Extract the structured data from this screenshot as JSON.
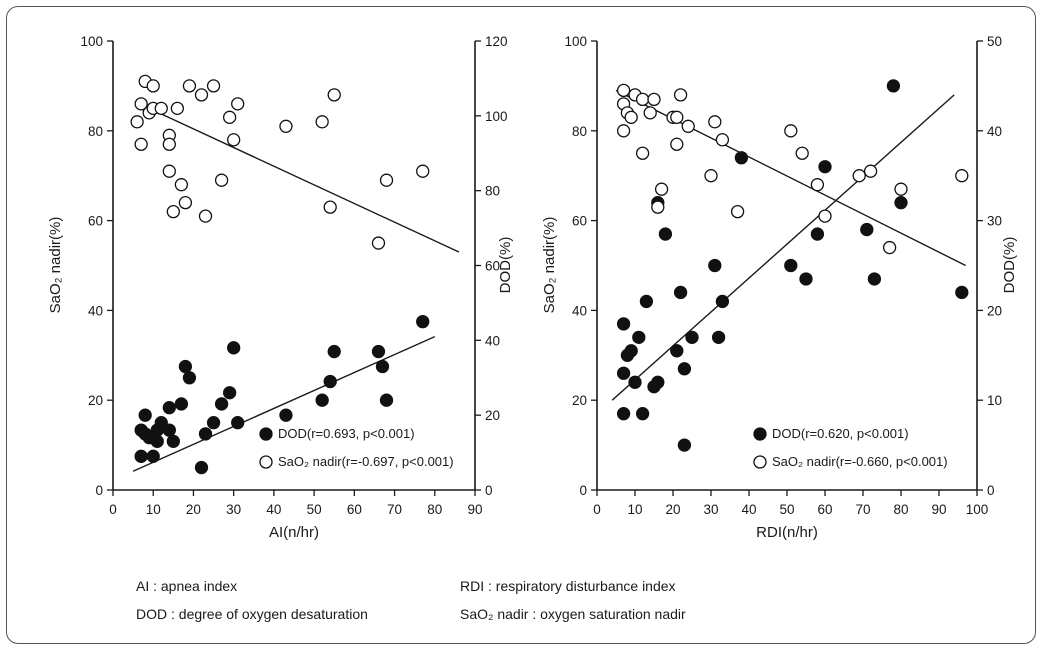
{
  "chart_data": [
    {
      "type": "scatter",
      "xlabel": "AI(n/hr)",
      "ylabel": "SaO₂ nadir(%)",
      "y2label": "DOD(%)",
      "xlim": [
        0,
        90
      ],
      "ylim": [
        0,
        100
      ],
      "y2lim": [
        0,
        120
      ],
      "xticks": [
        "0",
        "10",
        "20",
        "30",
        "40",
        "50",
        "60",
        "70",
        "80",
        "90"
      ],
      "yticks": [
        "0",
        "20",
        "40",
        "60",
        "80",
        "100"
      ],
      "y2ticks": [
        "0",
        "20",
        "40",
        "60",
        "80",
        "100",
        "120"
      ],
      "legend_position": "bottom-right",
      "series": [
        {
          "name": "DOD(r=0.693, p<0.001)",
          "marker": "filled-circle",
          "axis": "right",
          "points": [
            [
              7,
              16
            ],
            [
              7,
              9
            ],
            [
              8,
              15
            ],
            [
              8,
              20
            ],
            [
              9,
              14
            ],
            [
              10,
              9
            ],
            [
              11,
              13
            ],
            [
              11,
              16
            ],
            [
              12,
              18
            ],
            [
              14,
              16
            ],
            [
              14,
              22
            ],
            [
              15,
              13
            ],
            [
              17,
              23
            ],
            [
              18,
              33
            ],
            [
              19,
              30
            ],
            [
              22,
              6
            ],
            [
              23,
              15
            ],
            [
              25,
              18
            ],
            [
              27,
              23
            ],
            [
              29,
              26
            ],
            [
              30,
              38
            ],
            [
              31,
              18
            ],
            [
              43,
              20
            ],
            [
              52,
              24
            ],
            [
              54,
              29
            ],
            [
              55,
              37
            ],
            [
              66,
              37
            ],
            [
              67,
              33
            ],
            [
              68,
              24
            ],
            [
              77,
              45
            ]
          ],
          "fit": [
            [
              5,
              5
            ],
            [
              80,
              41
            ]
          ]
        },
        {
          "name": "SaO₂ nadir(r=-0.697, p<0.001)",
          "marker": "open-circle",
          "axis": "left",
          "points": [
            [
              6,
              82
            ],
            [
              7,
              77
            ],
            [
              7,
              86
            ],
            [
              8,
              91
            ],
            [
              9,
              84
            ],
            [
              10,
              90
            ],
            [
              10,
              85
            ],
            [
              12,
              85
            ],
            [
              14,
              79
            ],
            [
              14,
              77
            ],
            [
              14,
              71
            ],
            [
              15,
              62
            ],
            [
              16,
              85
            ],
            [
              17,
              68
            ],
            [
              18,
              64
            ],
            [
              19,
              90
            ],
            [
              22,
              88
            ],
            [
              23,
              61
            ],
            [
              25,
              90
            ],
            [
              27,
              69
            ],
            [
              29,
              83
            ],
            [
              30,
              78
            ],
            [
              31,
              86
            ],
            [
              43,
              81
            ],
            [
              52,
              82
            ],
            [
              54,
              63
            ],
            [
              55,
              88
            ],
            [
              66,
              55
            ],
            [
              68,
              69
            ],
            [
              77,
              71
            ]
          ],
          "fit": [
            [
              9,
              85
            ],
            [
              86,
              53
            ]
          ]
        }
      ]
    },
    {
      "type": "scatter",
      "xlabel": "RDI(n/hr)",
      "ylabel": "SaO₂ nadir(%)",
      "y2label": "DOD(%)",
      "xlim": [
        0,
        100
      ],
      "ylim": [
        0,
        100
      ],
      "y2lim": [
        0,
        50
      ],
      "xticks": [
        "0",
        "10",
        "20",
        "30",
        "40",
        "50",
        "60",
        "70",
        "80",
        "90",
        "100"
      ],
      "yticks": [
        "0",
        "20",
        "40",
        "60",
        "80",
        "100"
      ],
      "y2ticks": [
        "0",
        "10",
        "20",
        "30",
        "40",
        "50"
      ],
      "legend_position": "bottom-right",
      "series": [
        {
          "name": "DOD(r=0.620, p<0.001)",
          "marker": "filled-circle",
          "axis": "right",
          "points": [
            [
              7,
              18.5
            ],
            [
              7,
              13
            ],
            [
              7,
              8.5
            ],
            [
              8,
              15
            ],
            [
              9,
              15.5
            ],
            [
              10,
              12
            ],
            [
              11,
              17
            ],
            [
              12,
              8.5
            ],
            [
              13,
              21
            ],
            [
              15,
              11.5
            ],
            [
              16,
              12
            ],
            [
              16,
              32
            ],
            [
              18,
              28.5
            ],
            [
              21,
              15.5
            ],
            [
              22,
              22
            ],
            [
              23,
              13.5
            ],
            [
              23,
              5
            ],
            [
              25,
              17
            ],
            [
              31,
              25
            ],
            [
              32,
              17
            ],
            [
              33,
              21
            ],
            [
              38,
              37
            ],
            [
              51,
              25
            ],
            [
              55,
              23.5
            ],
            [
              58,
              28.5
            ],
            [
              60,
              36
            ],
            [
              71,
              29
            ],
            [
              73,
              23.5
            ],
            [
              78,
              45
            ],
            [
              80,
              32
            ],
            [
              96,
              22
            ]
          ],
          "fit": [
            [
              4,
              10
            ],
            [
              94,
              44
            ]
          ]
        },
        {
          "name": "SaO₂ nadir(r=-0.660, p<0.001)",
          "marker": "open-circle",
          "axis": "left",
          "points": [
            [
              7,
              89
            ],
            [
              7,
              86
            ],
            [
              7,
              80
            ],
            [
              8,
              84
            ],
            [
              9,
              83
            ],
            [
              10,
              88
            ],
            [
              12,
              87
            ],
            [
              12,
              75
            ],
            [
              14,
              84
            ],
            [
              15,
              87
            ],
            [
              16,
              63
            ],
            [
              17,
              67
            ],
            [
              20,
              83
            ],
            [
              21,
              83
            ],
            [
              21,
              77
            ],
            [
              22,
              88
            ],
            [
              24,
              81
            ],
            [
              30,
              70
            ],
            [
              31,
              82
            ],
            [
              33,
              78
            ],
            [
              37,
              62
            ],
            [
              51,
              80
            ],
            [
              54,
              75
            ],
            [
              58,
              68
            ],
            [
              60,
              61
            ],
            [
              69,
              70
            ],
            [
              72,
              71
            ],
            [
              77,
              54
            ],
            [
              80,
              67
            ],
            [
              96,
              70
            ]
          ],
          "fit": [
            [
              5,
              89
            ],
            [
              97,
              50
            ]
          ]
        }
      ]
    }
  ],
  "footnotes": [
    "AI : apnea index",
    "RDI : respiratory disturbance index",
    "DOD : degree of oxygen desaturation",
    "SaO₂ nadir : oxygen saturation nadir"
  ]
}
